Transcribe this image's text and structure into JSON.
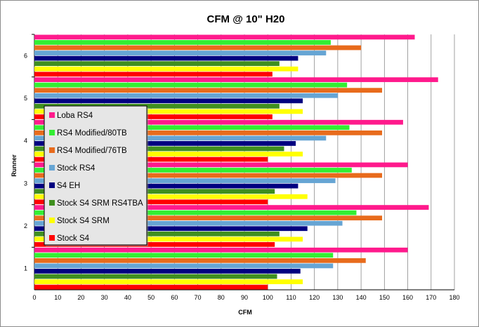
{
  "chart_data": {
    "type": "bar",
    "orientation": "horizontal",
    "title": "CFM @ 10\" H20",
    "xlabel": "CFM",
    "ylabel": "Runner",
    "xlim": [
      0,
      180
    ],
    "xticks": [
      0,
      10,
      20,
      30,
      40,
      50,
      60,
      70,
      80,
      90,
      100,
      110,
      120,
      130,
      140,
      150,
      160,
      170,
      180
    ],
    "categories": [
      "1",
      "2",
      "3",
      "4",
      "5",
      "6"
    ],
    "grid": "vertical",
    "legend_position": "left",
    "series": [
      {
        "name": "Stock S4",
        "color": "#ff0000",
        "values": [
          100,
          103,
          100,
          100,
          102,
          102
        ]
      },
      {
        "name": "Stock S4 SRM",
        "color": "#ffff00",
        "values": [
          115,
          115,
          117,
          115,
          115,
          113
        ]
      },
      {
        "name": "Stock S4 SRM RS4TBA",
        "color": "#3f8f1f",
        "values": [
          104,
          105,
          103,
          107,
          105,
          105
        ]
      },
      {
        "name": "S4 EH",
        "color": "#000080",
        "values": [
          114,
          117,
          113,
          112,
          115,
          113
        ]
      },
      {
        "name": "Stock RS4",
        "color": "#66a5d4",
        "values": [
          128,
          132,
          129,
          125,
          130,
          125
        ]
      },
      {
        "name": "RS4 Modified/76TB",
        "color": "#e86b1c",
        "values": [
          142,
          149,
          149,
          149,
          149,
          140
        ]
      },
      {
        "name": "RS4 Modified/80TB",
        "color": "#33ee33",
        "values": [
          128,
          138,
          136,
          135,
          134,
          127
        ]
      },
      {
        "name": "Loba RS4",
        "color": "#ff1a8c",
        "values": [
          160,
          169,
          160,
          158,
          173,
          163
        ]
      }
    ]
  }
}
